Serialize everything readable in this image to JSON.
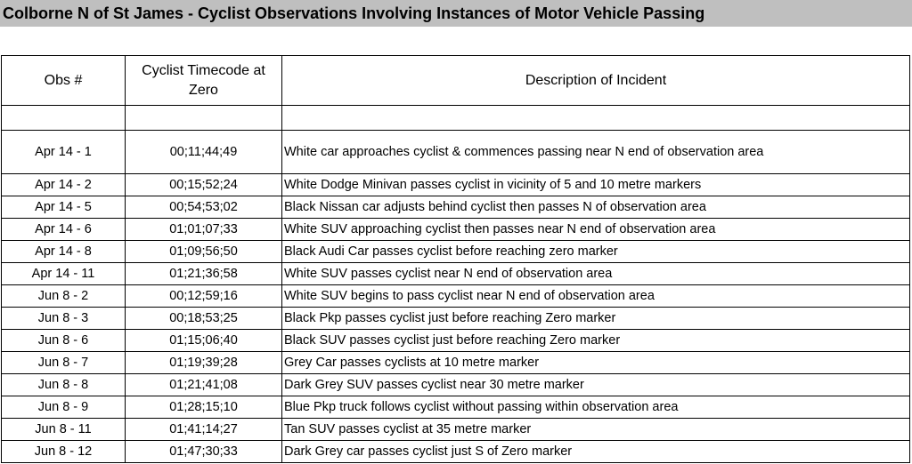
{
  "title": "Colborne N of St James - Cyclist Observations Involving Instances of  Motor Vehicle Passing",
  "table": {
    "headers": [
      "Obs #",
      "Cyclist Timecode at Zero",
      "Description of Incident"
    ],
    "rows": [
      [
        "Apr 14 - 1",
        "00;11;44;49",
        "White car approaches cyclist & commences passing near N end of observation area"
      ],
      [
        "Apr 14 - 2",
        "00;15;52;24",
        "White Dodge Minivan passes cyclist in vicinity of 5 and 10 metre markers"
      ],
      [
        "Apr 14 - 5",
        "00;54;53;02",
        "Black Nissan car adjusts behind cyclist then passes N of observation area"
      ],
      [
        "Apr 14 - 6",
        "01;01;07;33",
        "White SUV approaching cyclist then passes near N end of observation area"
      ],
      [
        "Apr 14 - 8",
        "01;09;56;50",
        "Black Audi Car passes cyclist before reaching zero marker"
      ],
      [
        "Apr 14 - 11",
        "01;21;36;58",
        "White SUV passes cyclist near N end of observation area"
      ],
      [
        "Jun 8 - 2",
        "00;12;59;16",
        "White SUV begins to pass cyclist near N end of observation area"
      ],
      [
        "Jun 8 - 3",
        "00;18;53;25",
        "Black Pkp passes cyclist just before reaching Zero marker"
      ],
      [
        "Jun 8 - 6",
        "01;15;06;40",
        "Black SUV passes cyclist just before reaching Zero marker"
      ],
      [
        "Jun 8 - 7",
        "01;19;39;28",
        "Grey Car passes cyclists at 10 metre marker"
      ],
      [
        "Jun 8 - 8",
        "01;21;41;08",
        "Dark Grey SUV passes cyclist near 30 metre marker"
      ],
      [
        "Jun 8 - 9",
        "01;28;15;10",
        "Blue Pkp truck follows cyclist without passing within observation area"
      ],
      [
        "Jun 8 - 11",
        "01;41;14;27",
        "Tan SUV passes cyclist at 35 metre marker"
      ],
      [
        "Jun 8 - 12",
        "01;47;30;33",
        "Dark Grey car passes cyclist just S of Zero marker"
      ]
    ]
  }
}
